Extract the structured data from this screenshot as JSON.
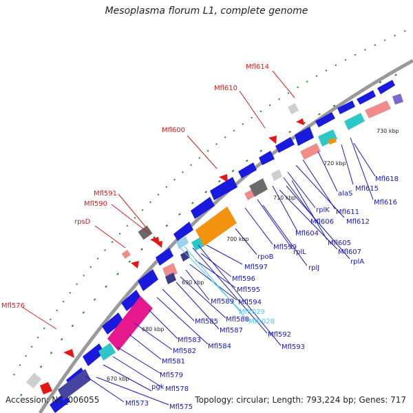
{
  "title": "Mesoplasma florum L1, complete genome",
  "accession": "Accession: NC_006055",
  "summary": "Topology: circular; Length: 793,224 bp; Genes: 717",
  "colors": {
    "forward_gene": "#1a1adf",
    "reverse_gene": "#e61414",
    "label_forward": "#1515c8",
    "label_reverse": "#d81b1b",
    "label_trna": "#4cc8f0",
    "pink": "#f08c8c",
    "magenta": "#e6198c",
    "teal": "#2ec7c7",
    "orange": "#f2920f",
    "gray": "#707070",
    "navy": "#3a3a8c",
    "backbone": "#999999"
  },
  "kbp_labels": [
    {
      "text": "730 kbp",
      "key": "k730"
    },
    {
      "text": "720 kbp",
      "key": "k720"
    },
    {
      "text": "710 kbp",
      "key": "k710"
    },
    {
      "text": "700 kbp",
      "key": "k700"
    },
    {
      "text": "690 kbp",
      "key": "k690"
    },
    {
      "text": "680 kbp",
      "key": "k680"
    },
    {
      "text": "670 kbp",
      "key": "k670"
    }
  ],
  "gene_labels": [
    {
      "text": "Mfl614",
      "strand": "reverse"
    },
    {
      "text": "Mfl610",
      "strand": "reverse"
    },
    {
      "text": "Mfl600",
      "strand": "reverse"
    },
    {
      "text": "Mfl591",
      "strand": "reverse"
    },
    {
      "text": "Mfl590",
      "strand": "reverse"
    },
    {
      "text": "rpsD",
      "strand": "reverse"
    },
    {
      "text": "Mfl576",
      "strand": "reverse"
    },
    {
      "text": "Mfl618",
      "strand": "forward"
    },
    {
      "text": "Mfl615",
      "strand": "forward"
    },
    {
      "text": "Mfl616",
      "strand": "forward"
    },
    {
      "text": "alaS",
      "strand": "forward"
    },
    {
      "text": "Mfl611",
      "strand": "forward"
    },
    {
      "text": "Mfl612",
      "strand": "forward"
    },
    {
      "text": "rplK",
      "strand": "forward"
    },
    {
      "text": "Mfl606",
      "strand": "forward"
    },
    {
      "text": "Mfl604",
      "strand": "forward"
    },
    {
      "text": "Mfl605",
      "strand": "forward"
    },
    {
      "text": "Mfl607",
      "strand": "forward"
    },
    {
      "text": "rplA",
      "strand": "forward"
    },
    {
      "text": "rplL",
      "strand": "forward"
    },
    {
      "text": "rplJ",
      "strand": "forward"
    },
    {
      "text": "Mfl599",
      "strand": "forward"
    },
    {
      "text": "rpoB",
      "strand": "forward"
    },
    {
      "text": "Mfl597",
      "strand": "forward"
    },
    {
      "text": "Mfl596",
      "strand": "forward"
    },
    {
      "text": "Mfl595",
      "strand": "forward"
    },
    {
      "text": "Mfl594",
      "strand": "forward"
    },
    {
      "text": "Mflt029",
      "strand": "trna"
    },
    {
      "text": "Mflt028",
      "strand": "trna"
    },
    {
      "text": "Mfl592",
      "strand": "forward"
    },
    {
      "text": "Mfl593",
      "strand": "forward"
    },
    {
      "text": "Mfl589",
      "strand": "forward"
    },
    {
      "text": "Mfl588",
      "strand": "forward"
    },
    {
      "text": "Mfl587",
      "strand": "forward"
    },
    {
      "text": "Mfl585",
      "strand": "forward"
    },
    {
      "text": "Mfl584",
      "strand": "forward"
    },
    {
      "text": "Mfl583",
      "strand": "forward"
    },
    {
      "text": "Mfl582",
      "strand": "forward"
    },
    {
      "text": "Mfl581",
      "strand": "forward"
    },
    {
      "text": "Mfl579",
      "strand": "forward"
    },
    {
      "text": "Mfl578",
      "strand": "forward"
    },
    {
      "text": "pgk",
      "strand": "forward"
    },
    {
      "text": "Mfl573",
      "strand": "forward"
    },
    {
      "text": "Mfl575",
      "strand": "forward"
    }
  ]
}
